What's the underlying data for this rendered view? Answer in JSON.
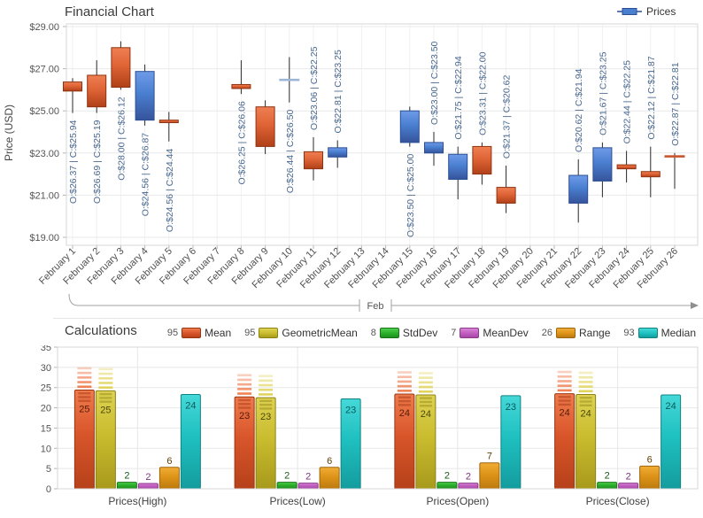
{
  "chart_data": [
    {
      "type": "candlestick",
      "title": "Financial Chart",
      "legend_label": "Prices",
      "y_axis": {
        "title": "Price (USD)",
        "tick_labels": [
          "$29.00",
          "$27.00",
          "$25.00",
          "$23.00",
          "$21.00",
          "$19.00"
        ],
        "tick_values": [
          29,
          27,
          25,
          23,
          21,
          19
        ],
        "min": 19,
        "max": 29
      },
      "x_labels": [
        "February 1",
        "February 2",
        "February 3",
        "February 4",
        "February 5",
        "February 6",
        "February 7",
        "February 8",
        "February 9",
        "February 10",
        "February 11",
        "February 12",
        "February 13",
        "February 14",
        "February 15",
        "February 16",
        "February 17",
        "February 18",
        "February 19",
        "February 20",
        "February 21",
        "February 22",
        "February 23",
        "February 24",
        "February 25",
        "February 26"
      ],
      "band_label": "Feb",
      "colors": {
        "up": "#4a7fd0",
        "up_light": "#6f9be8",
        "up_dark": "#36539b",
        "up_border": "#2b4f94",
        "down": "#df6436",
        "down_light": "#ef7f52",
        "down_dark": "#b04018",
        "down_border": "#8e3312",
        "up_dash": "#9db6d8",
        "down_dash": "#c8552e",
        "wick": "#2a2a2a",
        "label": "#49688f"
      },
      "points": [
        {
          "day": 1,
          "open": 26.37,
          "high": 26.55,
          "low": 24.9,
          "close": 25.94,
          "label": "O:$26.37 | C:$25.94",
          "label_pos": "below"
        },
        {
          "day": 2,
          "open": 26.69,
          "high": 27.4,
          "low": 24.9,
          "close": 25.19,
          "label": "O:$26.69 | C:$25.19",
          "label_pos": "below"
        },
        {
          "day": 3,
          "open": 28.0,
          "high": 28.3,
          "low": 26.0,
          "close": 26.12,
          "label": "O:$28.00 | C:$26.12",
          "label_pos": "below"
        },
        {
          "day": 4,
          "open": 24.56,
          "high": 27.2,
          "low": 24.3,
          "close": 26.87,
          "label": "O:$24.56 | C:$26.87",
          "label_pos": "below"
        },
        {
          "day": 5,
          "open": 24.56,
          "high": 24.95,
          "low": 23.55,
          "close": 24.44,
          "label": "O:$24.56 | C:$24.44",
          "label_pos": "below"
        },
        {
          "day": 8,
          "open": 26.25,
          "high": 27.4,
          "low": 25.8,
          "close": 26.06,
          "label": "O:$26.25 | C:$26.06",
          "label_pos": "below"
        },
        {
          "day": 9,
          "open": 25.19,
          "high": 25.5,
          "low": 22.95,
          "close": 23.31,
          "label": null,
          "label_pos": null
        },
        {
          "day": 10,
          "open": 26.44,
          "high": 27.55,
          "low": 25.4,
          "close": 26.5,
          "label": "O:$26.44 | C:$26.50",
          "label_pos": "below"
        },
        {
          "day": 11,
          "open": 23.06,
          "high": 23.75,
          "low": 21.7,
          "close": 22.25,
          "label": "O:$23.06 | C:$22.25",
          "label_pos": "above"
        },
        {
          "day": 12,
          "open": 22.81,
          "high": 23.6,
          "low": 22.3,
          "close": 23.25,
          "label": "O:$22.81 | C:$23.25",
          "label_pos": "above"
        },
        {
          "day": 15,
          "open": 23.5,
          "high": 25.2,
          "low": 23.3,
          "close": 25.0,
          "label": "O:$23.50 | C:$25.00",
          "label_pos": "below"
        },
        {
          "day": 16,
          "open": 23.0,
          "high": 24.0,
          "low": 22.4,
          "close": 23.5,
          "label": "O:$23.00 | C:$23.50",
          "label_pos": "above"
        },
        {
          "day": 17,
          "open": 21.75,
          "high": 23.3,
          "low": 20.8,
          "close": 22.94,
          "label": "O:$21.75 | C:$22.94",
          "label_pos": "above"
        },
        {
          "day": 18,
          "open": 23.31,
          "high": 23.5,
          "low": 21.5,
          "close": 22.0,
          "label": "O:$23.31 | C:$22.00",
          "label_pos": "above"
        },
        {
          "day": 19,
          "open": 21.37,
          "high": 22.4,
          "low": 20.15,
          "close": 20.62,
          "label": "O:$21.37 | C:$20.62",
          "label_pos": "above"
        },
        {
          "day": 22,
          "open": 20.62,
          "high": 22.7,
          "low": 19.7,
          "close": 21.94,
          "label": "O:$20.62 | C:$21.94",
          "label_pos": "above"
        },
        {
          "day": 23,
          "open": 21.67,
          "high": 23.5,
          "low": 20.9,
          "close": 23.25,
          "label": "O:$21.67 | C:$23.25",
          "label_pos": "above"
        },
        {
          "day": 24,
          "open": 22.44,
          "high": 23.1,
          "low": 21.6,
          "close": 22.25,
          "label": "O:$22.44 | C:$22.25",
          "label_pos": "above"
        },
        {
          "day": 25,
          "open": 22.12,
          "high": 23.3,
          "low": 20.9,
          "close": 21.87,
          "label": "O:$22.12 | C:$21.87",
          "label_pos": "above"
        },
        {
          "day": 26,
          "open": 22.87,
          "high": 23.0,
          "low": 21.3,
          "close": 22.81,
          "label": "O:$22.87 | C:$22.81",
          "label_pos": "above"
        }
      ]
    },
    {
      "type": "bar",
      "title": "Calculations",
      "categories": [
        "Prices(High)",
        "Prices(Low)",
        "Prices(Open)",
        "Prices(Close)"
      ],
      "y_axis": {
        "min": 0,
        "max": 35,
        "step": 5,
        "tick_labels": [
          "0",
          "5",
          "10",
          "15",
          "20",
          "25",
          "30",
          "35"
        ]
      },
      "series": [
        {
          "name": "Mean",
          "legend_value": "95",
          "striped": true,
          "color": {
            "base": "#d8552a",
            "light": "#ef7b4d",
            "dark": "#b6411a",
            "border": "#9c3410",
            "label": "#541c09"
          },
          "values": [
            25,
            23,
            24,
            24
          ],
          "bar_heights": [
            24.4,
            22.7,
            23.4,
            23.5
          ]
        },
        {
          "name": "GeometricMean",
          "legend_value": "95",
          "striped": true,
          "color": {
            "base": "#c9bc2e",
            "light": "#ded253",
            "dark": "#a89a1c",
            "border": "#8d8113",
            "label": "#4d470c"
          },
          "values": [
            25,
            23,
            24,
            24
          ],
          "bar_heights": [
            24.2,
            22.5,
            23.2,
            23.3
          ]
        },
        {
          "name": "StdDev",
          "legend_value": "8",
          "striped": false,
          "color": {
            "base": "#2aae2a",
            "light": "#4ecf4e",
            "dark": "#1f8d1f",
            "border": "#187618",
            "label": "#135c13"
          },
          "values": [
            2,
            2,
            2,
            2
          ],
          "bar_heights": [
            1.6,
            1.6,
            1.6,
            1.6
          ]
        },
        {
          "name": "MeanDev",
          "legend_value": "7",
          "striped": false,
          "color": {
            "base": "#c05ec0",
            "light": "#d883d6",
            "dark": "#a647a6",
            "border": "#8c3a8c",
            "label": "#7d337d"
          },
          "values": [
            2,
            2,
            2,
            2
          ],
          "bar_heights": [
            1.3,
            1.4,
            1.4,
            1.4
          ]
        },
        {
          "name": "Range",
          "legend_value": "26",
          "striped": false,
          "color": {
            "base": "#dd9318",
            "light": "#f1ad35",
            "dark": "#bc7a0e",
            "border": "#9c650b",
            "label": "#5e3f04"
          },
          "values": [
            6,
            6,
            7,
            6
          ],
          "bar_heights": [
            5.3,
            5.3,
            6.4,
            5.6
          ]
        },
        {
          "name": "Median",
          "legend_value": "93",
          "striped": false,
          "color": {
            "base": "#1fc0c0",
            "light": "#45d8d8",
            "dark": "#149c9e",
            "border": "#0f8384",
            "label": "#0a5a5c"
          },
          "values": [
            24,
            23,
            23,
            24
          ],
          "bar_heights": [
            23.3,
            22.2,
            23.0,
            23.2
          ]
        }
      ]
    }
  ]
}
